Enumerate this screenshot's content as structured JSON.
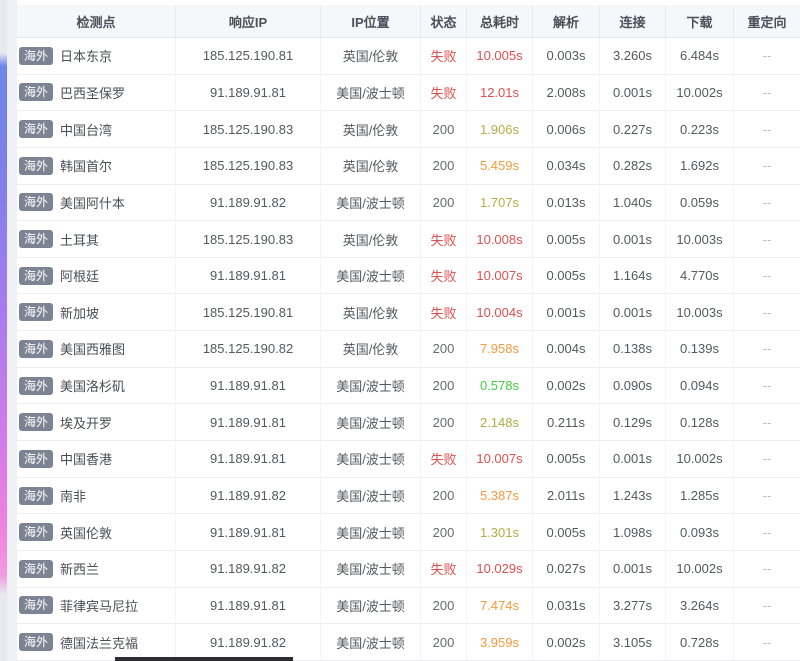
{
  "table": {
    "badge_label": "海外",
    "columns": [
      {
        "key": "node",
        "label": "检测点"
      },
      {
        "key": "ip",
        "label": "响应IP"
      },
      {
        "key": "location",
        "label": "IP位置"
      },
      {
        "key": "status",
        "label": "状态"
      },
      {
        "key": "total",
        "label": "总耗时"
      },
      {
        "key": "parse",
        "label": "解析"
      },
      {
        "key": "connect",
        "label": "连接"
      },
      {
        "key": "download",
        "label": "下载"
      },
      {
        "key": "redirect",
        "label": "重定向"
      }
    ],
    "rows": [
      {
        "node": "日本东京",
        "ip": "185.125.190.81",
        "location": "英国/伦敦",
        "status": "失败",
        "status_color": "red",
        "total": "10.005s",
        "total_color": "red",
        "parse": "0.003s",
        "connect": "3.260s",
        "download": "6.484s",
        "redirect": "--"
      },
      {
        "node": "巴西圣保罗",
        "ip": "91.189.91.81",
        "location": "美国/波士顿",
        "status": "失败",
        "status_color": "red",
        "total": "12.01s",
        "total_color": "red",
        "parse": "2.008s",
        "connect": "0.001s",
        "download": "10.002s",
        "redirect": "--"
      },
      {
        "node": "中国台湾",
        "ip": "185.125.190.83",
        "location": "英国/伦敦",
        "status": "200",
        "status_color": "gray",
        "total": "1.906s",
        "total_color": "olive",
        "parse": "0.006s",
        "connect": "0.227s",
        "download": "0.223s",
        "redirect": "--"
      },
      {
        "node": "韩国首尔",
        "ip": "185.125.190.83",
        "location": "英国/伦敦",
        "status": "200",
        "status_color": "gray",
        "total": "5.459s",
        "total_color": "orange",
        "parse": "0.034s",
        "connect": "0.282s",
        "download": "1.692s",
        "redirect": "--"
      },
      {
        "node": "美国阿什本",
        "ip": "91.189.91.82",
        "location": "美国/波士顿",
        "status": "200",
        "status_color": "gray",
        "total": "1.707s",
        "total_color": "olive",
        "parse": "0.013s",
        "connect": "1.040s",
        "download": "0.059s",
        "redirect": "--"
      },
      {
        "node": "土耳其",
        "ip": "185.125.190.83",
        "location": "英国/伦敦",
        "status": "失败",
        "status_color": "red",
        "total": "10.008s",
        "total_color": "red",
        "parse": "0.005s",
        "connect": "0.001s",
        "download": "10.003s",
        "redirect": "--"
      },
      {
        "node": "阿根廷",
        "ip": "91.189.91.81",
        "location": "美国/波士顿",
        "status": "失败",
        "status_color": "red",
        "total": "10.007s",
        "total_color": "red",
        "parse": "0.005s",
        "connect": "1.164s",
        "download": "4.770s",
        "redirect": "--"
      },
      {
        "node": "新加坡",
        "ip": "185.125.190.81",
        "location": "英国/伦敦",
        "status": "失败",
        "status_color": "red",
        "total": "10.004s",
        "total_color": "red",
        "parse": "0.001s",
        "connect": "0.001s",
        "download": "10.003s",
        "redirect": "--"
      },
      {
        "node": "美国西雅图",
        "ip": "185.125.190.82",
        "location": "英国/伦敦",
        "status": "200",
        "status_color": "gray",
        "total": "7.958s",
        "total_color": "orange",
        "parse": "0.004s",
        "connect": "0.138s",
        "download": "0.139s",
        "redirect": "--"
      },
      {
        "node": "美国洛杉矶",
        "ip": "91.189.91.81",
        "location": "美国/波士顿",
        "status": "200",
        "status_color": "gray",
        "total": "0.578s",
        "total_color": "green",
        "parse": "0.002s",
        "connect": "0.090s",
        "download": "0.094s",
        "redirect": "--"
      },
      {
        "node": "埃及开罗",
        "ip": "91.189.91.81",
        "location": "美国/波士顿",
        "status": "200",
        "status_color": "gray",
        "total": "2.148s",
        "total_color": "olive",
        "parse": "0.211s",
        "connect": "0.129s",
        "download": "0.128s",
        "redirect": "--"
      },
      {
        "node": "中国香港",
        "ip": "91.189.91.81",
        "location": "美国/波士顿",
        "status": "失败",
        "status_color": "red",
        "total": "10.007s",
        "total_color": "red",
        "parse": "0.005s",
        "connect": "0.001s",
        "download": "10.002s",
        "redirect": "--"
      },
      {
        "node": "南非",
        "ip": "91.189.91.82",
        "location": "美国/波士顿",
        "status": "200",
        "status_color": "gray",
        "total": "5.387s",
        "total_color": "orange",
        "parse": "2.011s",
        "connect": "1.243s",
        "download": "1.285s",
        "redirect": "--"
      },
      {
        "node": "英国伦敦",
        "ip": "91.189.91.81",
        "location": "美国/波士顿",
        "status": "200",
        "status_color": "gray",
        "total": "1.301s",
        "total_color": "olive",
        "parse": "0.005s",
        "connect": "1.098s",
        "download": "0.093s",
        "redirect": "--"
      },
      {
        "node": "新西兰",
        "ip": "91.189.91.82",
        "location": "美国/波士顿",
        "status": "失败",
        "status_color": "red",
        "total": "10.029s",
        "total_color": "red",
        "parse": "0.027s",
        "connect": "0.001s",
        "download": "10.002s",
        "redirect": "--"
      },
      {
        "node": "菲律宾马尼拉",
        "ip": "91.189.91.81",
        "location": "美国/波士顿",
        "status": "200",
        "status_color": "gray",
        "total": "7.474s",
        "total_color": "orange",
        "parse": "0.031s",
        "connect": "3.277s",
        "download": "3.264s",
        "redirect": "--"
      },
      {
        "node": "德国法兰克福",
        "ip": "91.189.91.82",
        "location": "美国/波士顿",
        "status": "200",
        "status_color": "gray",
        "total": "3.959s",
        "total_color": "orange",
        "parse": "0.002s",
        "connect": "3.105s",
        "download": "0.728s",
        "redirect": "--"
      }
    ]
  },
  "colors": {
    "red": "#e04f4f",
    "orange": "#f59a3d",
    "olive": "#b2ae45",
    "green": "#3fd13f",
    "gray": "#666a72",
    "dash": "#b8bbc2",
    "badge_bg": "#7c8493",
    "accent_gradient_top": "#6c86ea",
    "accent_gradient_bottom": "#ef82dd"
  }
}
